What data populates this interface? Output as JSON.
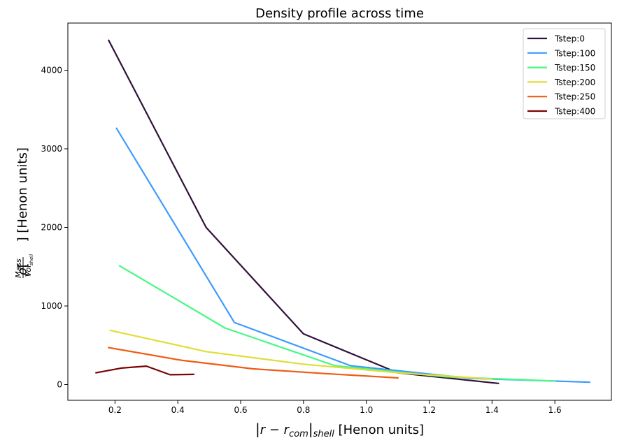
{
  "chart_data": {
    "type": "line",
    "title": "Density profile across time",
    "xlabel": "|r − r_com|_shell [Henon units]",
    "ylabel": "ρ[Mass/Vol_shell] [Henon units]",
    "xlim": [
      0.05,
      1.78
    ],
    "ylim": [
      -200,
      4600
    ],
    "xticks": [
      0.2,
      0.4,
      0.6,
      0.8,
      1.0,
      1.2,
      1.4,
      1.6
    ],
    "xtick_labels": [
      "0.2",
      "0.4",
      "0.6",
      "0.8",
      "1.0",
      "1.2",
      "1.4",
      "1.6"
    ],
    "yticks": [
      0,
      1000,
      2000,
      3000,
      4000
    ],
    "ytick_labels": [
      "0",
      "1000",
      "2000",
      "3000",
      "4000"
    ],
    "grid": false,
    "legend_position": "top-right",
    "series": [
      {
        "name": "Tstep:0",
        "color": "#30123b",
        "x": [
          0.18,
          0.49,
          0.8,
          1.1,
          1.42
        ],
        "y": [
          4380,
          2000,
          645,
          150,
          15
        ]
      },
      {
        "name": "Tstep:100",
        "color": "#3e9bfe",
        "x": [
          0.205,
          0.58,
          0.95,
          1.33,
          1.71
        ],
        "y": [
          3260,
          790,
          240,
          80,
          30
        ]
      },
      {
        "name": "Tstep:150",
        "color": "#46f884",
        "x": [
          0.215,
          0.55,
          0.9,
          1.25,
          1.6
        ],
        "y": [
          1510,
          720,
          240,
          100,
          45
        ]
      },
      {
        "name": "Tstep:200",
        "color": "#e1dd37",
        "x": [
          0.185,
          0.49,
          0.8,
          1.1,
          1.4
        ],
        "y": [
          690,
          420,
          260,
          150,
          70
        ]
      },
      {
        "name": "Tstep:250",
        "color": "#f05b12",
        "x": [
          0.18,
          0.41,
          0.64,
          0.87,
          1.1
        ],
        "y": [
          470,
          310,
          200,
          140,
          85
        ]
      },
      {
        "name": "Tstep:400",
        "color": "#7a0403",
        "x": [
          0.14,
          0.22,
          0.3,
          0.375,
          0.45
        ],
        "y": [
          150,
          210,
          235,
          125,
          130
        ]
      }
    ]
  }
}
